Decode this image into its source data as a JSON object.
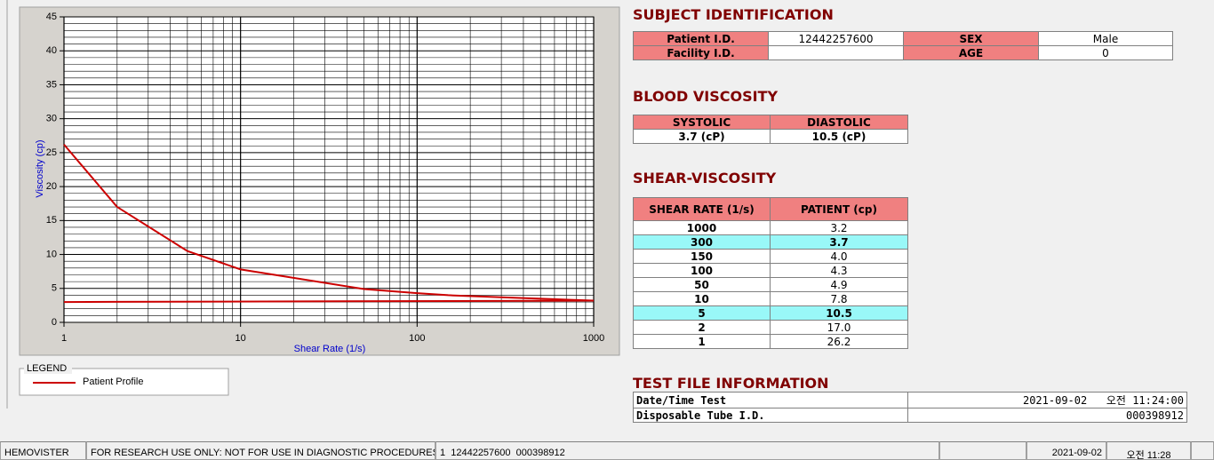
{
  "chart_data": {
    "type": "line",
    "xlabel": "Shear Rate (1/s)",
    "ylabel": "Viscosity (cp)",
    "xscale": "log",
    "xlim": [
      1,
      1000
    ],
    "ylim": [
      0,
      45
    ],
    "xticks": [
      1,
      10,
      100,
      1000
    ],
    "yticks": [
      0,
      5,
      10,
      15,
      20,
      25,
      30,
      35,
      40,
      45
    ],
    "grid": true,
    "legend_title": "LEGEND",
    "series": [
      {
        "name": "Patient Profile",
        "color": "#cc0000",
        "x": [
          1,
          2,
          5,
          10,
          50,
          100,
          150,
          300,
          1000
        ],
        "values": [
          26.2,
          17.0,
          10.5,
          7.8,
          4.9,
          4.3,
          4.0,
          3.7,
          3.2
        ]
      },
      {
        "color": "#cc0000",
        "x": [
          1,
          1000
        ],
        "values": [
          3.0,
          3.2
        ]
      }
    ]
  },
  "subject": {
    "title": "SUBJECT IDENTIFICATION",
    "patient_id_label": "Patient I.D.",
    "patient_id": "12442257600",
    "sex_label": "SEX",
    "sex": "Male",
    "facility_id_label": "Facility I.D.",
    "age_label": "AGE",
    "age": "0"
  },
  "blood_viscosity": {
    "title": "BLOOD VISCOSITY",
    "headers": [
      "SYSTOLIC",
      "DIASTOLIC"
    ],
    "values": [
      "3.7 (cP)",
      "10.5 (cP)"
    ]
  },
  "shear_viscosity": {
    "title": "SHEAR-VISCOSITY",
    "headers": [
      "SHEAR RATE (1/s)",
      "PATIENT (cp)"
    ],
    "rows": [
      [
        "1000",
        "3.2"
      ],
      [
        "300",
        "3.7"
      ],
      [
        "150",
        "4.0"
      ],
      [
        "100",
        "4.3"
      ],
      [
        "50",
        "4.9"
      ],
      [
        "10",
        "7.8"
      ],
      [
        "5",
        "10.5"
      ],
      [
        "2",
        "17.0"
      ],
      [
        "1",
        "26.2"
      ]
    ]
  },
  "test_file": {
    "title": "TEST FILE INFORMATION",
    "rows": [
      [
        "Date/Time Test",
        "2021-09-02   오전 11:24:00"
      ],
      [
        "Disposable Tube I.D.",
        "000398912"
      ]
    ]
  },
  "status_bar": [
    "HEMOVISTER",
    "FOR RESEARCH USE ONLY: NOT FOR USE IN DIAGNOSTIC PROCEDURES",
    "1  12442257600  000398912",
    "2021-09-02",
    "오전 11:28"
  ]
}
